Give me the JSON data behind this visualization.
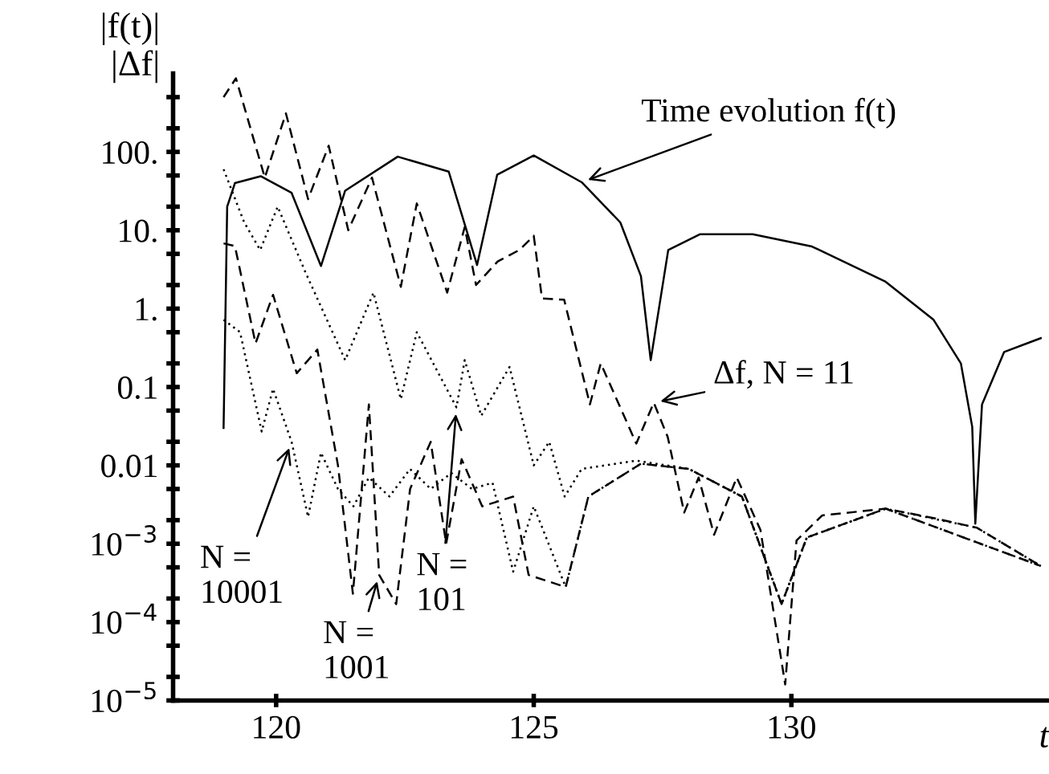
{
  "chart_data": {
    "type": "line",
    "xlabel": "t",
    "ylabel": "|f(t)|\n|Δf|",
    "xlim": [
      118,
      135
    ],
    "xticks": [
      120,
      125,
      130
    ],
    "ylim": [
      1e-05,
      1000
    ],
    "log": "y",
    "yticks": [
      {
        "value": 1e-05,
        "label": "10$^{−5}$"
      },
      {
        "value": 2e-05,
        "label": null
      },
      {
        "value": 5e-05,
        "label": null
      },
      {
        "value": 0.0001,
        "label": "10$^{−4}$"
      },
      {
        "value": 0.0002,
        "label": null
      },
      {
        "value": 0.0005,
        "label": null
      },
      {
        "value": 0.001,
        "label": "10$^{−3}$"
      },
      {
        "value": 0.002,
        "label": null
      },
      {
        "value": 0.005,
        "label": null
      },
      {
        "value": 0.01,
        "label": "0.01"
      },
      {
        "value": 0.02,
        "label": null
      },
      {
        "value": 0.05,
        "label": null
      },
      {
        "value": 0.1,
        "label": "0.1"
      },
      {
        "value": 0.2,
        "label": null
      },
      {
        "value": 0.5,
        "label": null
      },
      {
        "value": 1,
        "label": "1."
      },
      {
        "value": 2,
        "label": null
      },
      {
        "value": 5,
        "label": null
      },
      {
        "value": 10,
        "label": "10."
      },
      {
        "value": 20,
        "label": null
      },
      {
        "value": 50,
        "label": null
      },
      {
        "value": 100,
        "label": "100."
      },
      {
        "value": 200,
        "label": null
      },
      {
        "value": 500,
        "label": null
      }
    ],
    "grid": false,
    "legend": false,
    "series": [
      {
        "color": "#000000",
        "line_style": "solid",
        "x": [
          118.98,
          119.05,
          119.2,
          119.7,
          120.3,
          120.87,
          121.34,
          122.36,
          123.35,
          123.9,
          124.29,
          125.0,
          125.93,
          126.68,
          127.08,
          127.27,
          127.61,
          128.23,
          129.25,
          130.4,
          131.83,
          132.76,
          133.29,
          133.51,
          133.57,
          133.7,
          134.13,
          134.84
        ],
        "values": [
          0.03,
          20,
          40,
          49,
          30,
          3.5,
          32,
          87,
          56,
          3.6,
          51,
          90,
          41,
          12.6,
          2.6,
          0.22,
          5.6,
          8.9,
          8.9,
          6.2,
          2.2,
          0.72,
          0.2,
          0.031,
          0.0018,
          0.06,
          0.28,
          0.42
        ]
      },
      {
        "color": "#000000",
        "line_style": "dashed",
        "x": [
          118.98,
          119.22,
          119.78,
          120.19,
          120.62,
          121.02,
          121.4,
          121.86,
          122.42,
          122.73,
          123.32,
          123.66,
          123.88,
          124.3,
          124.72,
          125.0,
          125.16,
          125.59,
          126.09,
          126.3,
          126.99,
          127.33,
          127.6,
          127.92,
          128.2,
          128.5,
          128.94,
          129.4,
          129.88,
          130.1,
          130.6,
          131.83,
          132.8,
          133.6,
          134.84
        ],
        "values": [
          500,
          870,
          47,
          310,
          25,
          120,
          10,
          47,
          1.9,
          22,
          1.6,
          11,
          2,
          4,
          5.6,
          8.5,
          1.35,
          1.3,
          0.06,
          0.2,
          0.019,
          0.063,
          0.023,
          0.0025,
          0.007,
          0.0013,
          0.007,
          0.0015,
          1.6e-05,
          0.0011,
          0.0023,
          0.0028,
          0.0021,
          0.0016,
          0.00052
        ]
      },
      {
        "color": "#000000",
        "line_style": "dotted",
        "x": [
          118.98,
          119.38,
          119.69,
          120.03,
          120.56,
          121.34,
          121.89,
          122.42,
          122.73,
          123.5,
          123.66,
          123.98,
          124.53,
          125.0,
          125.3,
          125.6,
          125.93,
          126.99,
          128.01,
          129.04,
          129.81,
          130.3,
          131.83,
          133.6,
          134.84
        ],
        "values": [
          60,
          12.6,
          5.6,
          20,
          3,
          0.22,
          1.6,
          0.07,
          0.5,
          0.055,
          0.22,
          0.043,
          0.18,
          0.01,
          0.02,
          0.004,
          0.009,
          0.0115,
          0.009,
          0.004,
          0.00017,
          0.0012,
          0.0028,
          0.0016,
          0.00052
        ]
      },
      {
        "color": "#000000",
        "line_style": "dashed",
        "x": [
          118.98,
          119.2,
          119.6,
          119.94,
          120.4,
          120.8,
          121.2,
          121.49,
          121.8,
          122.0,
          122.33,
          122.6,
          123.0,
          123.3,
          123.6,
          124.0,
          124.6,
          124.9,
          125.62,
          126.06,
          127.08,
          128.01,
          129.04,
          129.81,
          130.3,
          131.83,
          134.84
        ],
        "values": [
          6.8,
          6.3,
          0.36,
          1.5,
          0.15,
          0.3,
          0.01,
          0.00023,
          0.06,
          0.0004,
          0.00017,
          0.005,
          0.02,
          0.001,
          0.012,
          0.003,
          0.004,
          0.0004,
          0.00028,
          0.004,
          0.0105,
          0.009,
          0.004,
          0.00017,
          0.0012,
          0.0028,
          0.00052
        ]
      },
      {
        "color": "#000000",
        "line_style": "dotted",
        "x": [
          118.98,
          119.3,
          119.72,
          119.94,
          120.3,
          120.62,
          120.87,
          121.2,
          121.5,
          121.8,
          122.2,
          122.6,
          123.0,
          123.4,
          123.8,
          124.2,
          124.6,
          125.0,
          125.62,
          126.06,
          127.08,
          128.01,
          129.04,
          129.81,
          130.3,
          131.83,
          134.84
        ],
        "values": [
          0.72,
          0.5,
          0.027,
          0.095,
          0.02,
          0.0022,
          0.0145,
          0.005,
          0.003,
          0.007,
          0.004,
          0.009,
          0.005,
          0.008,
          0.005,
          0.006,
          0.00044,
          0.003,
          0.00028,
          0.004,
          0.0105,
          0.009,
          0.004,
          0.00017,
          0.0012,
          0.0028,
          0.00052
        ]
      }
    ],
    "annotations": [
      {
        "text": "Time evolution f(t)",
        "x": 125.93,
        "y": 41
      },
      {
        "text": "Δf, N = 11",
        "x": 127.33,
        "y": 0.063
      },
      {
        "text": "N =\n10001",
        "x": 120.3,
        "y": 0.02
      },
      {
        "text": "N =\n1001",
        "x": 122.0,
        "y": 0.0004
      },
      {
        "text": "N =\n101",
        "x": 123.5,
        "y": 0.055
      }
    ]
  }
}
